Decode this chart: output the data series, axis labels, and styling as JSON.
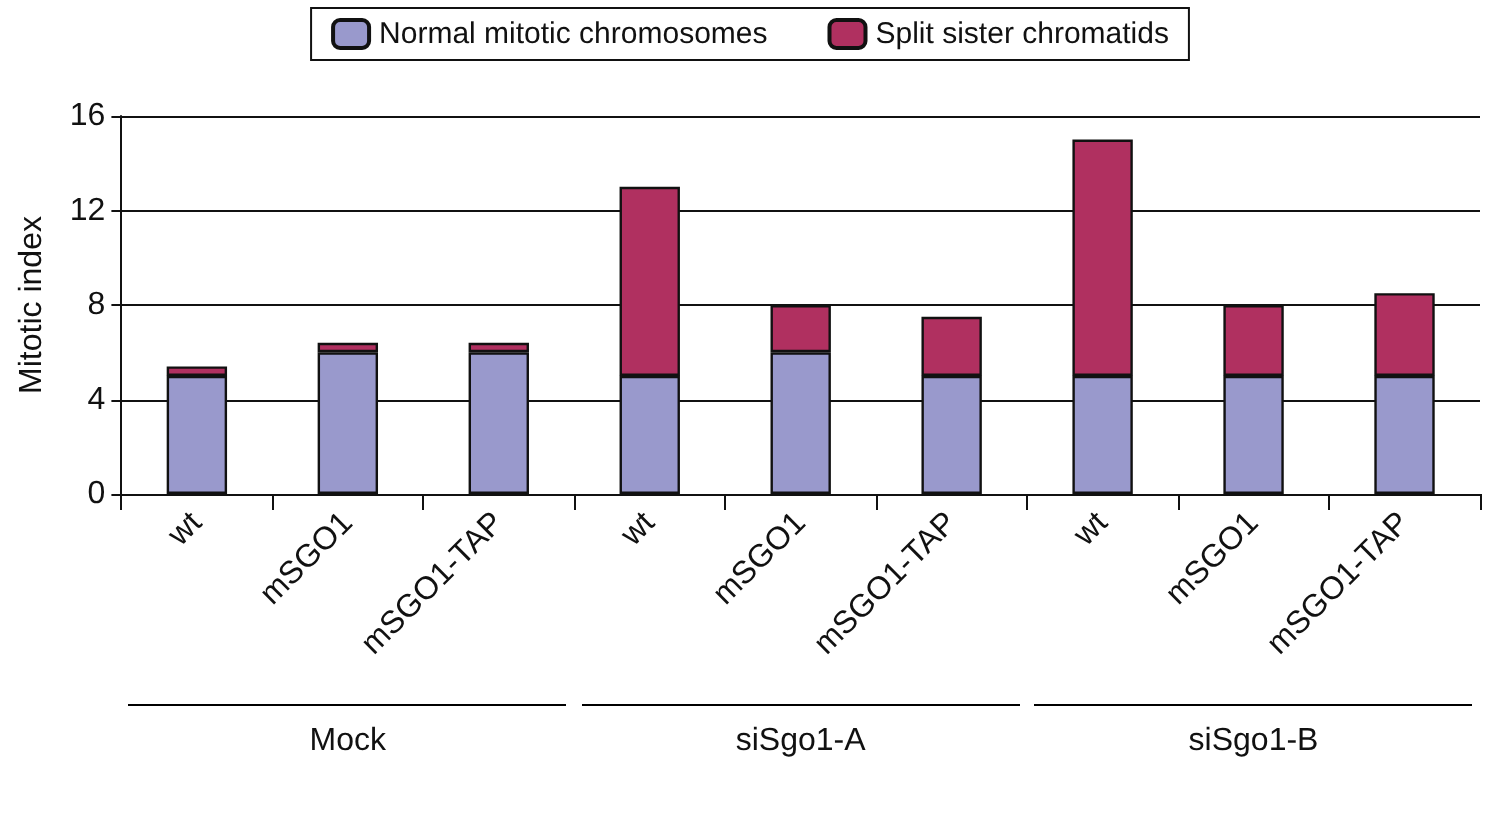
{
  "chart_data": {
    "type": "bar",
    "stacked": true,
    "ylabel": "Mitotic index",
    "categories": [
      "wt",
      "mSGO1",
      "mSGO1-TAP",
      "wt",
      "mSGO1",
      "mSGO1-TAP",
      "wt",
      "mSGO1",
      "mSGO1-TAP"
    ],
    "series": [
      {
        "name": "Normal mitotic chromosomes",
        "color": "#9999cc",
        "values": [
          5,
          6,
          6,
          5,
          6,
          5,
          5,
          5,
          5
        ]
      },
      {
        "name": "Split sister chromatids",
        "color": "#b03060",
        "values": [
          0.4,
          0.4,
          0.4,
          8,
          2,
          2.5,
          10,
          3,
          3.5
        ]
      }
    ],
    "ylim": [
      0,
      16
    ],
    "yticks": [
      0,
      4,
      8,
      12,
      16
    ],
    "grid": "y",
    "legend": "top",
    "annotations": [
      "Mock",
      "siSgo1-A",
      "siSgo1-B"
    ]
  }
}
